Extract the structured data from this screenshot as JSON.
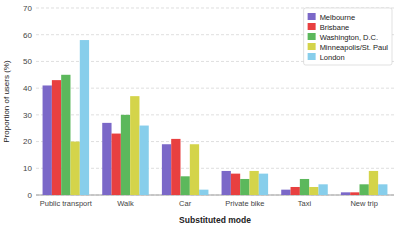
{
  "chart_data": {
    "type": "bar",
    "xlabel": "Substituted mode",
    "ylabel": "Proportion of users (%)",
    "categories": [
      "Public transport",
      "Walk",
      "Car",
      "Private bike",
      "Taxi",
      "New trip"
    ],
    "series": [
      {
        "name": "Melbourne",
        "color": "#7B68C8",
        "values": [
          41,
          27,
          19,
          9,
          2,
          1
        ]
      },
      {
        "name": "Brisbane",
        "color": "#E84040",
        "values": [
          43,
          23,
          21,
          8,
          3,
          1
        ]
      },
      {
        "name": "Washington, D.C.",
        "color": "#5CB85C",
        "values": [
          45,
          30,
          7,
          6,
          6,
          4
        ]
      },
      {
        "name": "Minneapolis/St. Paul",
        "color": "#D4D44A",
        "values": [
          20,
          37,
          19,
          9,
          3,
          9
        ]
      },
      {
        "name": "London",
        "color": "#87CEEB",
        "values": [
          58,
          26,
          2,
          8,
          4,
          4
        ]
      }
    ],
    "ylim": [
      0,
      70
    ],
    "yticks": [
      0,
      10,
      20,
      30,
      40,
      50,
      60,
      70
    ],
    "grid": true,
    "legend": "upper right"
  }
}
